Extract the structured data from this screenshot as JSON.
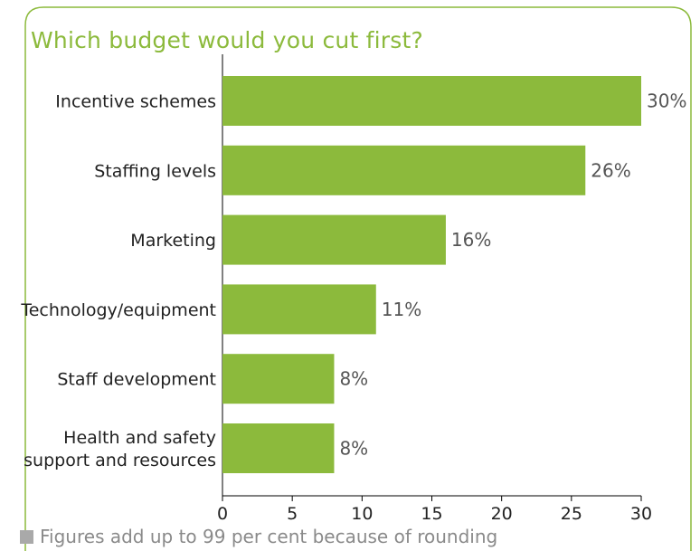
{
  "title": "Which budget would you cut first?",
  "footnote": "Figures add up to 99 per cent because of rounding",
  "colors": {
    "accent": "#8cba3c",
    "bar": "#8cba3c",
    "border": "#8cba3c",
    "label_text": "#222222",
    "value_text": "#555555",
    "footnote_marker": "#a9a9a9"
  },
  "chart_data": {
    "type": "bar",
    "orientation": "horizontal",
    "title": "Which budget would you cut first?",
    "categories": [
      "Incentive schemes",
      "Staffing levels",
      "Marketing",
      "Technology/equipment",
      "Staff development",
      "Health and safety support and resources"
    ],
    "category_lines": [
      [
        "Incentive schemes"
      ],
      [
        "Staffing levels"
      ],
      [
        "Marketing"
      ],
      [
        "Technology/equipment"
      ],
      [
        "Staff development"
      ],
      [
        "Health and safety",
        "support and resources"
      ]
    ],
    "values": [
      30,
      26,
      16,
      11,
      8,
      8
    ],
    "value_labels": [
      "30%",
      "26%",
      "16%",
      "11%",
      "8%",
      "8%"
    ],
    "xlim": [
      0,
      30
    ],
    "xticks": [
      0,
      5,
      10,
      15,
      20,
      25,
      30
    ],
    "xlabel": "",
    "ylabel": "",
    "grid": false
  }
}
